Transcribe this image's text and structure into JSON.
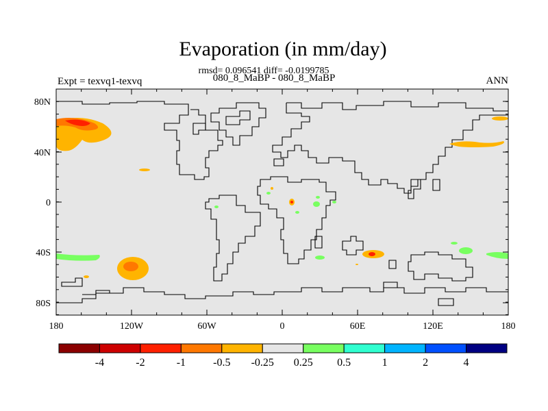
{
  "header": {
    "title": "Evaporation (in mm/day)",
    "stats": "rmsd= 0.096541 diff= -0.0199785",
    "case": "080_8_MaBP - 080_8_MaBP",
    "expt": "Expt = texvq1-texvq",
    "season": "ANN"
  },
  "map": {
    "lat_labels": [
      "80N",
      "40N",
      "0",
      "40S",
      "80S"
    ],
    "lon_labels": [
      "180",
      "120W",
      "60W",
      "0",
      "60E",
      "120E",
      "180"
    ],
    "background_color": "#e6e6e6"
  },
  "colorbar": {
    "colors": [
      "#8b0000",
      "#cd0000",
      "#ff2000",
      "#ff7800",
      "#ffb400",
      "#e6e6e6",
      "#78ff60",
      "#30ffd0",
      "#00b4ff",
      "#0050ff",
      "#000082"
    ],
    "labels": [
      "-4",
      "-2",
      "-1",
      "-0.5",
      "-0.25",
      "0.25",
      "0.5",
      "1",
      "2",
      "4"
    ]
  }
}
